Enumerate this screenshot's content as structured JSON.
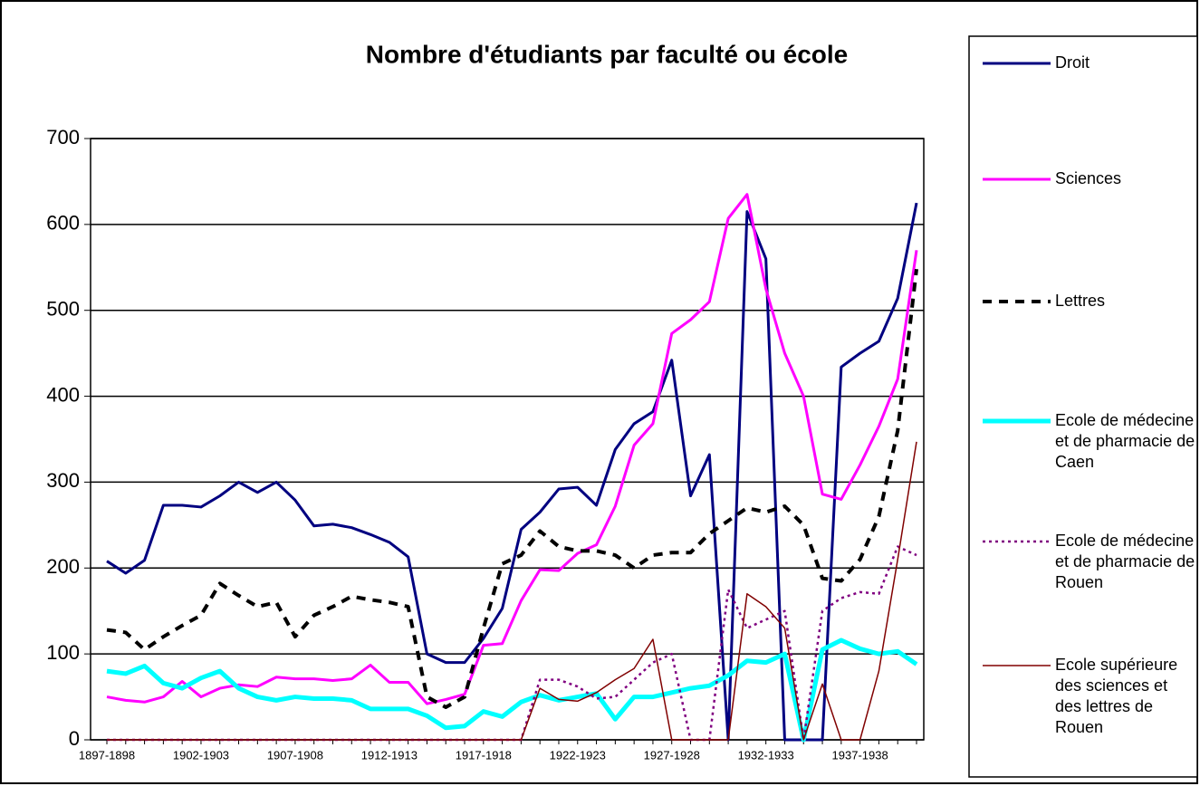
{
  "chart_data": {
    "type": "line",
    "title": "Nombre d'étudiants par faculté ou école",
    "categories": [
      "1897-1898",
      null,
      null,
      null,
      null,
      "1902-1903",
      null,
      null,
      null,
      null,
      "1907-1908",
      null,
      null,
      null,
      null,
      "1912-1913",
      null,
      null,
      null,
      null,
      "1917-1918",
      null,
      null,
      null,
      null,
      "1922-1923",
      null,
      null,
      null,
      null,
      "1927-1928",
      null,
      null,
      null,
      null,
      "1932-1933",
      null,
      null,
      null,
      null,
      "1937-1938",
      null,
      null,
      null
    ],
    "ylim": [
      0,
      700
    ],
    "yticks": [
      0,
      100,
      200,
      300,
      400,
      500,
      600,
      700
    ],
    "grid": true,
    "legend": "right",
    "series": [
      {
        "name": "Droit",
        "color": "#000080",
        "style": "solid",
        "linewidth": 3,
        "values": [
          208,
          194,
          209,
          273,
          273,
          271,
          284,
          300,
          288,
          300,
          279,
          249,
          251,
          247,
          239,
          230,
          213,
          100,
          90,
          90,
          118,
          153,
          245,
          265,
          292,
          294,
          273,
          338,
          368,
          382,
          442,
          284,
          332,
          0,
          615,
          560,
          0,
          0,
          0,
          434,
          450,
          464,
          514,
          625
        ]
      },
      {
        "name": "Sciences",
        "color": "#ff00ff",
        "style": "solid",
        "linewidth": 3,
        "values": [
          50,
          46,
          44,
          50,
          68,
          50,
          60,
          64,
          62,
          73,
          71,
          71,
          69,
          71,
          87,
          67,
          67,
          42,
          47,
          53,
          110,
          112,
          162,
          198,
          197,
          217,
          227,
          272,
          343,
          368,
          473,
          489,
          510,
          607,
          635,
          525,
          450,
          400,
          286,
          280,
          320,
          365,
          420,
          570
        ]
      },
      {
        "name": "Lettres",
        "color": "#000000",
        "style": "dashed",
        "linewidth": 4,
        "values": [
          128,
          125,
          105,
          120,
          133,
          145,
          182,
          168,
          155,
          160,
          120,
          145,
          155,
          167,
          163,
          160,
          155,
          50,
          38,
          50,
          130,
          205,
          215,
          243,
          225,
          220,
          220,
          215,
          200,
          215,
          218,
          218,
          240,
          255,
          270,
          265,
          272,
          250,
          188,
          185,
          210,
          260,
          360,
          548
        ]
      },
      {
        "name": "Ecole de médecine et de pharmacie de Caen",
        "color": "#00ffff",
        "style": "solid",
        "linewidth": 5,
        "values": [
          80,
          77,
          86,
          66,
          60,
          72,
          80,
          60,
          50,
          46,
          50,
          48,
          48,
          46,
          36,
          36,
          36,
          28,
          14,
          16,
          33,
          27,
          44,
          52,
          46,
          50,
          54,
          24,
          50,
          50,
          55,
          60,
          63,
          75,
          92,
          90,
          100,
          0,
          105,
          116,
          106,
          100,
          103,
          88
        ]
      },
      {
        "name": "Ecole de médecine et de pharmacie de Rouen",
        "color": "#800080",
        "style": "dotted",
        "linewidth": 2.5,
        "values": [
          0,
          0,
          0,
          0,
          0,
          0,
          0,
          0,
          0,
          0,
          0,
          0,
          0,
          0,
          0,
          0,
          0,
          0,
          0,
          0,
          0,
          0,
          0,
          70,
          70,
          62,
          48,
          50,
          70,
          90,
          100,
          0,
          0,
          175,
          130,
          140,
          150,
          0,
          150,
          165,
          172,
          170,
          225,
          215
        ]
      },
      {
        "name": "Ecole supérieure des sciences et des lettres de Rouen",
        "color": "#800000",
        "style": "solid",
        "linewidth": 1.5,
        "values": [
          0,
          0,
          0,
          0,
          0,
          0,
          0,
          0,
          0,
          0,
          0,
          0,
          0,
          0,
          0,
          0,
          0,
          0,
          0,
          0,
          0,
          0,
          0,
          60,
          47,
          45,
          55,
          70,
          83,
          117,
          0,
          0,
          0,
          0,
          170,
          155,
          130,
          0,
          65,
          0,
          0,
          80,
          210,
          347
        ]
      }
    ]
  }
}
